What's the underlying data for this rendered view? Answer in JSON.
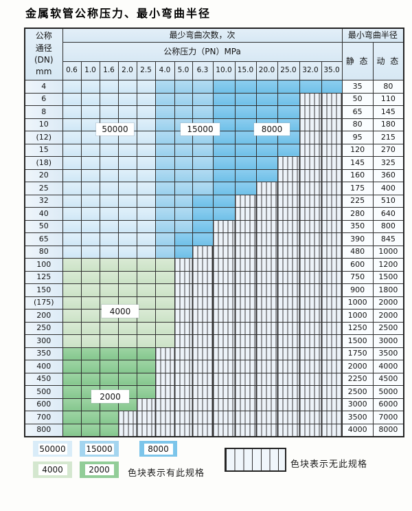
{
  "title": "金属软管公称压力、最小弯曲半径",
  "table": {
    "dn_header": [
      "公称",
      "通径",
      "(DN)",
      "mm"
    ],
    "cycles_header": "最少弯曲次数，次",
    "pressure_header": "公称压力（PN）MPa",
    "radius_header": "最小弯曲半径",
    "static_header": "静 态",
    "dynamic_header": "动 态",
    "pressure_columns": [
      "0.6",
      "1.0",
      "1.6",
      "2.0",
      "2.5",
      "4.0",
      "5.0",
      "6.3",
      "10.0",
      "15.0",
      "20.0",
      "25.0",
      "32.0",
      "35.0"
    ],
    "rows": [
      {
        "dn": "4",
        "bands": "LLLLLMMMDDDDDD",
        "static": "35",
        "dynamic": "80"
      },
      {
        "dn": "6",
        "bands": "LLLLLMMMDDDDXX",
        "static": "50",
        "dynamic": "110"
      },
      {
        "dn": "8",
        "bands": "LLLLLMMMDDDDXX",
        "static": "65",
        "dynamic": "145"
      },
      {
        "dn": "10",
        "bands": "LLLLLMMMDDDDXX",
        "static": "80",
        "dynamic": "180"
      },
      {
        "dn": "(12)",
        "bands": "LLLLLMMMDDDDXX",
        "static": "95",
        "dynamic": "215"
      },
      {
        "dn": "15",
        "bands": "LLLLLMMMDDDDXX",
        "static": "120",
        "dynamic": "270"
      },
      {
        "dn": "(18)",
        "bands": "LLLLLMMMDDDXXX",
        "static": "145",
        "dynamic": "325"
      },
      {
        "dn": "20",
        "bands": "LLLLLMMMDDDXXX",
        "static": "160",
        "dynamic": "360"
      },
      {
        "dn": "25",
        "bands": "LLLLLMMMDDXXXX",
        "static": "175",
        "dynamic": "400"
      },
      {
        "dn": "32",
        "bands": "LLLLLMMDDXXXXX",
        "static": "225",
        "dynamic": "510"
      },
      {
        "dn": "40",
        "bands": "LLLLLMMDDXXXXX",
        "static": "280",
        "dynamic": "640"
      },
      {
        "dn": "50",
        "bands": "LLLLLMMDXXXXXX",
        "static": "350",
        "dynamic": "800"
      },
      {
        "dn": "65",
        "bands": "LLLLLMDDXXXXXX",
        "static": "390",
        "dynamic": "845"
      },
      {
        "dn": "80",
        "bands": "LLLLLMDXXXXXXX",
        "static": "480",
        "dynamic": "1000"
      },
      {
        "dn": "100",
        "bands": "GGGGGGXXXXXXXX",
        "static": "600",
        "dynamic": "1200"
      },
      {
        "dn": "125",
        "bands": "GGGGGGXXXXXXXX",
        "static": "750",
        "dynamic": "1500"
      },
      {
        "dn": "150",
        "bands": "GGGGGGXXXXXXXX",
        "static": "900",
        "dynamic": "1800"
      },
      {
        "dn": "(175)",
        "bands": "GGGGGGXXXXXXXX",
        "static": "1000",
        "dynamic": "2000"
      },
      {
        "dn": "200",
        "bands": "GGGGGGXXXXXXXX",
        "static": "1000",
        "dynamic": "2000"
      },
      {
        "dn": "250",
        "bands": "GGGGGGXXXXXXXX",
        "static": "1250",
        "dynamic": "2500"
      },
      {
        "dn": "300",
        "bands": "GGGGGGXXXXXXXX",
        "static": "1500",
        "dynamic": "3000"
      },
      {
        "dn": "350",
        "bands": "EEEEEXXXXXXXXX",
        "static": "1750",
        "dynamic": "3500"
      },
      {
        "dn": "400",
        "bands": "EEEEEXXXXXXXXX",
        "static": "2000",
        "dynamic": "4000"
      },
      {
        "dn": "450",
        "bands": "EEEEEXXXXXXXXX",
        "static": "2250",
        "dynamic": "4500"
      },
      {
        "dn": "500",
        "bands": "EEEEEXXXXXXXXX",
        "static": "2500",
        "dynamic": "5000"
      },
      {
        "dn": "600",
        "bands": "EEEEXXXXXXXXXX",
        "static": "3000",
        "dynamic": "6000"
      },
      {
        "dn": "700",
        "bands": "EEEXXXXXXXXXXX",
        "static": "3500",
        "dynamic": "7000"
      },
      {
        "dn": "800",
        "bands": "EEEXXXXXXXXXXX",
        "static": "4000",
        "dynamic": "8000"
      }
    ]
  },
  "bands": {
    "L": {
      "cycles": "50000",
      "color": "#d9ecf8"
    },
    "M": {
      "cycles": "15000",
      "color": "#a4d5ef"
    },
    "D": {
      "cycles": "8000",
      "color": "#7cc5ea"
    },
    "G": {
      "cycles": "4000",
      "color": "#d4e7cf"
    },
    "E": {
      "cycles": "2000",
      "color": "#92cd98"
    },
    "X": {
      "cycles": "无此规格",
      "color": "#edf3f9"
    }
  },
  "overlay_labels": [
    {
      "text": "50000"
    },
    {
      "text": "15000"
    },
    {
      "text": "8000"
    },
    {
      "text": "4000"
    },
    {
      "text": "2000"
    }
  ],
  "legend": {
    "items": [
      {
        "label": "50000",
        "color": "#d9ecf8"
      },
      {
        "label": "15000",
        "color": "#a4d5ef"
      },
      {
        "label": "8000",
        "color": "#7cc5ea"
      },
      {
        "label": "4000",
        "color": "#d4e7cf"
      },
      {
        "label": "2000",
        "color": "#92cd98"
      }
    ],
    "has_spec_text": "色块表示有此规格",
    "no_spec_text": "色块表示无此规格"
  },
  "colors": {
    "grid_line": "#2f2f2f",
    "header_bg": "#ddebf6",
    "dn_column_bg": "#e7f0f8",
    "value_cell_bg": "#fafdff"
  }
}
